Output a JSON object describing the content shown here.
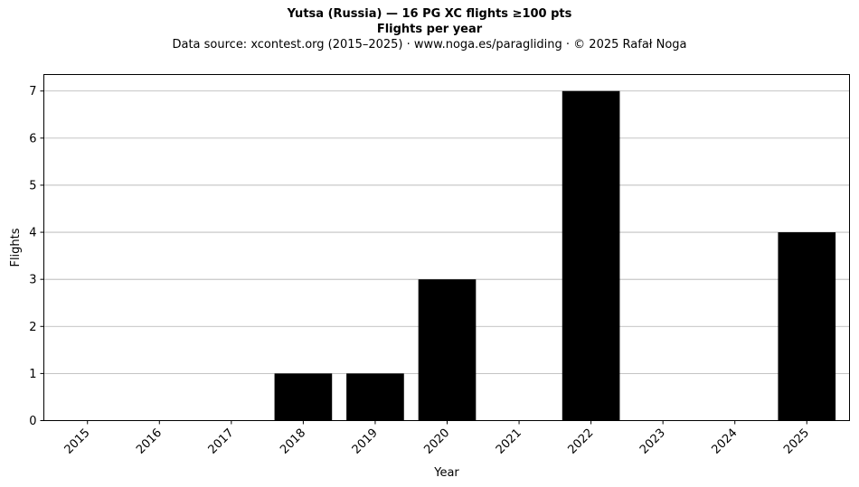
{
  "chart_data": {
    "type": "bar",
    "title": "Yutsa (Russia)  —  16 PG XC flights ≥100 pts",
    "subtitle": "Flights per year",
    "source_line": "Data source: xcontest.org (2015–2025)  ·  www.noga.es/paragliding  ·  © 2025 Rafał Noga",
    "xlabel": "Year",
    "ylabel": "Flights",
    "categories": [
      "2015",
      "2016",
      "2017",
      "2018",
      "2019",
      "2020",
      "2021",
      "2022",
      "2023",
      "2024",
      "2025"
    ],
    "values": [
      0,
      0,
      0,
      1,
      1,
      3,
      0,
      7,
      0,
      0,
      4
    ],
    "ylim": [
      0,
      7.35
    ],
    "yticks": [
      0,
      1,
      2,
      3,
      4,
      5,
      6,
      7
    ],
    "grid": "y-axis horizontal gridlines",
    "bar_color": "#000000",
    "grid_color": "#b0b0b0"
  }
}
